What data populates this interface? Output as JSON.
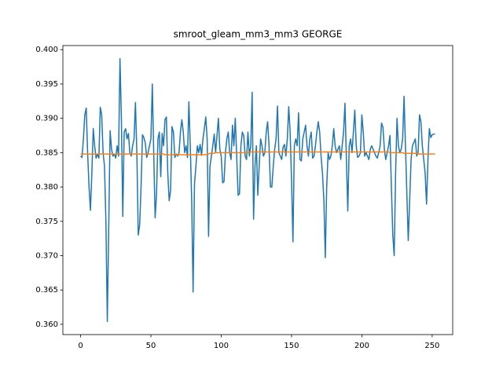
{
  "chart_data": {
    "type": "line",
    "title": "smroot_gleam_mm3_mm3 GEORGE",
    "x": [
      0,
      1,
      2,
      3,
      4,
      5,
      6,
      7,
      8,
      9,
      10,
      11,
      12,
      13,
      14,
      15,
      16,
      17,
      18,
      19,
      20,
      21,
      22,
      23,
      24,
      25,
      26,
      27,
      28,
      29,
      30,
      31,
      32,
      33,
      34,
      35,
      36,
      37,
      38,
      39,
      40,
      41,
      42,
      43,
      44,
      45,
      46,
      47,
      48,
      49,
      50,
      51,
      52,
      53,
      54,
      55,
      56,
      57,
      58,
      59,
      60,
      61,
      62,
      63,
      64,
      65,
      66,
      67,
      68,
      69,
      70,
      71,
      72,
      73,
      74,
      75,
      76,
      77,
      78,
      79,
      80,
      81,
      82,
      83,
      84,
      85,
      86,
      87,
      88,
      89,
      90,
      91,
      92,
      93,
      94,
      95,
      96,
      97,
      98,
      99,
      100,
      101,
      102,
      103,
      104,
      105,
      106,
      107,
      108,
      109,
      110,
      111,
      112,
      113,
      114,
      115,
      116,
      117,
      118,
      119,
      120,
      121,
      122,
      123,
      124,
      125,
      126,
      127,
      128,
      129,
      130,
      131,
      132,
      133,
      134,
      135,
      136,
      137,
      138,
      139,
      140,
      141,
      142,
      143,
      144,
      145,
      146,
      147,
      148,
      149,
      150,
      151,
      152,
      153,
      154,
      155,
      156,
      157,
      158,
      159,
      160,
      161,
      162,
      163,
      164,
      165,
      166,
      167,
      168,
      169,
      170,
      171,
      172,
      173,
      174,
      175,
      176,
      177,
      178,
      179,
      180,
      181,
      182,
      183,
      184,
      185,
      186,
      187,
      188,
      189,
      190,
      191,
      192,
      193,
      194,
      195,
      196,
      197,
      198,
      199,
      200,
      201,
      202,
      203,
      204,
      205,
      206,
      207,
      208,
      209,
      210,
      211,
      212,
      213,
      214,
      215,
      216,
      217,
      218,
      219,
      220,
      221,
      222,
      223,
      224,
      225,
      226,
      227,
      228,
      229,
      230,
      231,
      232,
      233,
      234,
      235,
      236,
      237,
      238,
      239,
      240,
      241,
      242,
      243,
      244,
      245,
      246,
      247,
      248,
      249,
      250,
      251,
      252
    ],
    "series": [
      {
        "color": "#1f77b4",
        "values": [
          0.3845,
          0.3843,
          0.387,
          0.3905,
          0.3915,
          0.385,
          0.38,
          0.3766,
          0.382,
          0.3885,
          0.386,
          0.3842,
          0.3848,
          0.3842,
          0.3916,
          0.3905,
          0.385,
          0.383,
          0.375,
          0.3604,
          0.374,
          0.3882,
          0.3855,
          0.3845,
          0.3848,
          0.3842,
          0.386,
          0.3845,
          0.3987,
          0.39,
          0.3757,
          0.388,
          0.3885,
          0.387,
          0.3878,
          0.385,
          0.3845,
          0.386,
          0.387,
          0.3923,
          0.385,
          0.373,
          0.3745,
          0.38,
          0.3876,
          0.3872,
          0.3864,
          0.3843,
          0.385,
          0.386,
          0.387,
          0.395,
          0.385,
          0.3755,
          0.379,
          0.387,
          0.388,
          0.3815,
          0.3878,
          0.386,
          0.3898,
          0.3902,
          0.382,
          0.378,
          0.3795,
          0.3888,
          0.388,
          0.3843,
          0.3848,
          0.3845,
          0.385,
          0.388,
          0.3898,
          0.388,
          0.385,
          0.386,
          0.3843,
          0.3924,
          0.386,
          0.378,
          0.3647,
          0.3805,
          0.383,
          0.386,
          0.385,
          0.3862,
          0.3846,
          0.387,
          0.3885,
          0.3902,
          0.387,
          0.3728,
          0.383,
          0.3845,
          0.386,
          0.3877,
          0.385,
          0.3875,
          0.39,
          0.3855,
          0.3845,
          0.3806,
          0.3808,
          0.385,
          0.387,
          0.388,
          0.385,
          0.384,
          0.389,
          0.386,
          0.39,
          0.3845,
          0.3788,
          0.379,
          0.386,
          0.388,
          0.3875,
          0.3845,
          0.384,
          0.388,
          0.3845,
          0.386,
          0.3938,
          0.3753,
          0.383,
          0.386,
          0.3788,
          0.383,
          0.387,
          0.386,
          0.3845,
          0.385,
          0.388,
          0.3895,
          0.386,
          0.38,
          0.38,
          0.383,
          0.3855,
          0.387,
          0.3918,
          0.385,
          0.3845,
          0.384,
          0.3858,
          0.3862,
          0.3845,
          0.387,
          0.3917,
          0.388,
          0.381,
          0.372,
          0.386,
          0.387,
          0.386,
          0.3908,
          0.384,
          0.3838,
          0.387,
          0.388,
          0.389,
          0.386,
          0.3845,
          0.387,
          0.388,
          0.3842,
          0.3845,
          0.386,
          0.388,
          0.3895,
          0.388,
          0.3845,
          0.382,
          0.378,
          0.3697,
          0.38,
          0.385,
          0.384,
          0.3845,
          0.386,
          0.3885,
          0.386,
          0.385,
          0.3855,
          0.386,
          0.384,
          0.386,
          0.388,
          0.3922,
          0.384,
          0.3765,
          0.386,
          0.387,
          0.385,
          0.388,
          0.3912,
          0.386,
          0.3843,
          0.3845,
          0.385,
          0.3905,
          0.388,
          0.3845,
          0.385,
          0.3845,
          0.384,
          0.3855,
          0.386,
          0.3855,
          0.385,
          0.3845,
          0.3842,
          0.385,
          0.386,
          0.3893,
          0.3887,
          0.3855,
          0.384,
          0.385,
          0.386,
          0.3875,
          0.38,
          0.373,
          0.37,
          0.382,
          0.39,
          0.386,
          0.385,
          0.3855,
          0.387,
          0.3932,
          0.386,
          0.379,
          0.3722,
          0.378,
          0.384,
          0.386,
          0.3865,
          0.387,
          0.3845,
          0.385,
          0.3905,
          0.3895,
          0.386,
          0.384,
          0.382,
          0.3775,
          0.384,
          0.3885,
          0.3872,
          0.3876,
          0.3877,
          0.3877
        ]
      },
      {
        "color": "#ff7f0e",
        "values": [
          0.3848,
          0.3848,
          0.3848,
          0.3848,
          0.3848,
          0.3848,
          0.3848,
          0.3848,
          0.3848,
          0.3848,
          0.3848,
          0.3848,
          0.3848,
          0.3848,
          0.3848,
          0.3848,
          0.3848,
          0.3848,
          0.3848,
          0.3848,
          0.3848,
          0.3848,
          0.3848,
          0.3848,
          0.3848,
          0.3848,
          0.3848,
          0.3848,
          0.3848,
          0.3848,
          0.3848,
          0.3848,
          0.3848,
          0.3848,
          0.3848,
          0.3848,
          0.3848,
          0.3848,
          0.3848,
          0.3848,
          0.3848,
          0.3848,
          0.3848,
          0.3848,
          0.3848,
          0.3848,
          0.3848,
          0.3848,
          0.3848,
          0.3848,
          0.3848,
          0.3848,
          0.3848,
          0.3848,
          0.3848,
          0.3848,
          0.3848,
          0.3848,
          0.3848,
          0.3848,
          0.3847,
          0.3847,
          0.3847,
          0.3847,
          0.3847,
          0.3847,
          0.3847,
          0.3847,
          0.3847,
          0.3847,
          0.3847,
          0.3847,
          0.3847,
          0.3847,
          0.3847,
          0.3847,
          0.3847,
          0.3847,
          0.3847,
          0.3847,
          0.3847,
          0.3847,
          0.3847,
          0.3847,
          0.3847,
          0.3847,
          0.3847,
          0.3847,
          0.3847,
          0.3847,
          0.3848,
          0.3848,
          0.3849,
          0.3849,
          0.3849,
          0.3849,
          0.385,
          0.385,
          0.385,
          0.385,
          0.385,
          0.385,
          0.385,
          0.385,
          0.385,
          0.385,
          0.385,
          0.385,
          0.385,
          0.385,
          0.385,
          0.385,
          0.385,
          0.385,
          0.385,
          0.385,
          0.385,
          0.385,
          0.385,
          0.385,
          0.3851,
          0.3851,
          0.3851,
          0.3851,
          0.3851,
          0.3851,
          0.3851,
          0.3851,
          0.3851,
          0.3851,
          0.3851,
          0.3851,
          0.3851,
          0.3851,
          0.3851,
          0.3851,
          0.3851,
          0.3851,
          0.3851,
          0.3851,
          0.3851,
          0.3851,
          0.3851,
          0.3851,
          0.3851,
          0.3851,
          0.3851,
          0.3851,
          0.3851,
          0.3851,
          0.3851,
          0.3851,
          0.3851,
          0.3851,
          0.3851,
          0.3851,
          0.3851,
          0.3851,
          0.3851,
          0.3851,
          0.3851,
          0.3851,
          0.3851,
          0.3851,
          0.3851,
          0.3851,
          0.3851,
          0.3851,
          0.3851,
          0.3851,
          0.3851,
          0.3851,
          0.3851,
          0.3851,
          0.3851,
          0.3851,
          0.3851,
          0.3851,
          0.3851,
          0.3851,
          0.3851,
          0.3851,
          0.3851,
          0.3851,
          0.3851,
          0.3851,
          0.3851,
          0.3851,
          0.3851,
          0.3851,
          0.3851,
          0.3851,
          0.3851,
          0.3851,
          0.3851,
          0.3851,
          0.3851,
          0.3851,
          0.3851,
          0.3851,
          0.3851,
          0.3851,
          0.3851,
          0.3851,
          0.3851,
          0.3851,
          0.3851,
          0.3851,
          0.3851,
          0.3851,
          0.3851,
          0.3851,
          0.3851,
          0.3851,
          0.3851,
          0.3851,
          0.3851,
          0.3851,
          0.3851,
          0.3851,
          0.385,
          0.385,
          0.385,
          0.385,
          0.385,
          0.385,
          0.385,
          0.385,
          0.385,
          0.385,
          0.3849,
          0.3849,
          0.3849,
          0.3849,
          0.3849,
          0.3849,
          0.3849,
          0.3849,
          0.3849,
          0.3849,
          0.3848,
          0.3848,
          0.3848,
          0.3848,
          0.3848,
          0.3848,
          0.3848,
          0.3848,
          0.3848,
          0.3848,
          0.3848,
          0.3848,
          0.3848
        ]
      }
    ],
    "xlim": [
      -12.6,
      264.6
    ],
    "xticks": [
      0,
      50,
      100,
      150,
      200,
      250
    ],
    "ylim": [
      0.3585,
      0.4006
    ],
    "yticks": [
      {
        "value": 0.36,
        "label": "0.360"
      },
      0.365,
      {
        "value": 0.37,
        "label": "0.370"
      },
      0.375,
      {
        "value": 0.38,
        "label": "0.380"
      },
      0.385,
      {
        "value": 0.39,
        "label": "0.390"
      },
      0.395,
      {
        "value": 0.4,
        "label": "0.400"
      }
    ]
  }
}
